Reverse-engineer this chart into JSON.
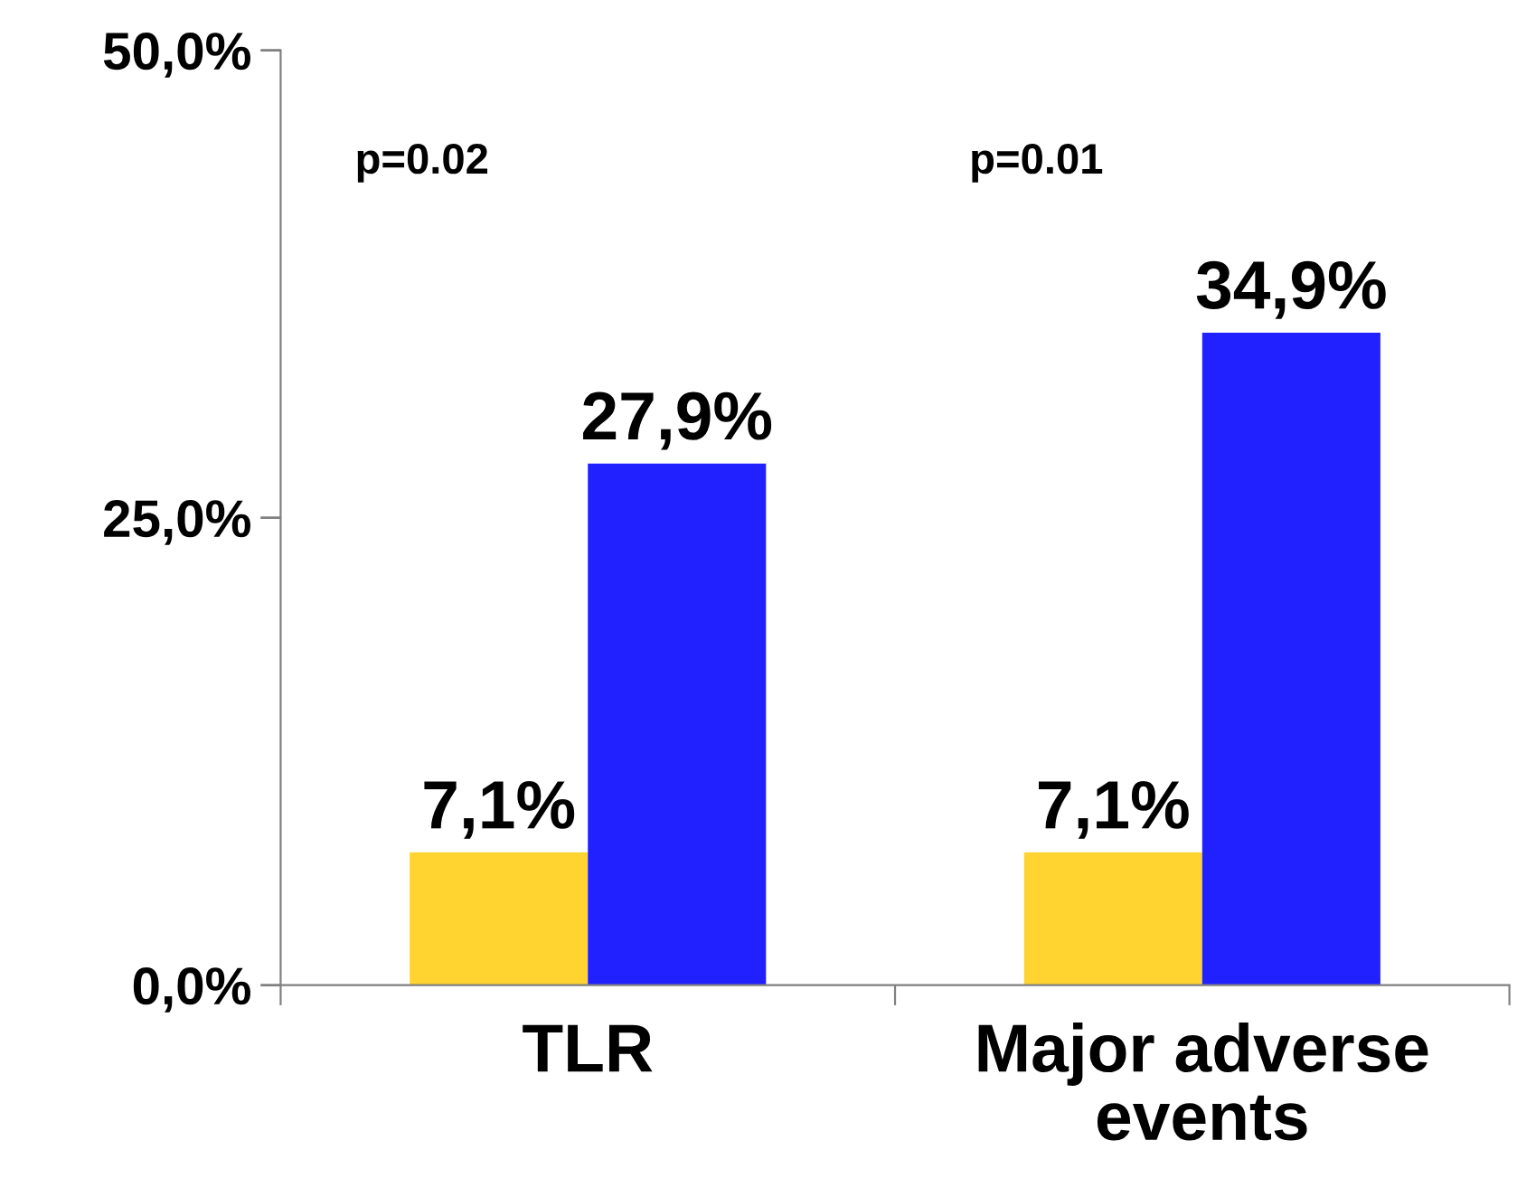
{
  "chart_data": {
    "type": "bar",
    "categories": [
      "TLR",
      "Major adverse\nevents"
    ],
    "series": [
      {
        "color": "#ffd430",
        "values": [
          7.1,
          7.1
        ],
        "value_labels": [
          "7,1%",
          "7,1%"
        ]
      },
      {
        "color": "#2121ff",
        "values": [
          27.9,
          34.9
        ],
        "value_labels": [
          "27,9%",
          "34,9%"
        ]
      }
    ],
    "ylim": [
      0,
      50
    ],
    "yticks": [
      {
        "value": 0,
        "label": "0,0%"
      },
      {
        "value": 25,
        "label": "25,0%"
      },
      {
        "value": 50,
        "label": "50,0%"
      }
    ],
    "annotations": [
      "p=0.02",
      "p=0.01"
    ],
    "grid": false,
    "legend": false
  }
}
